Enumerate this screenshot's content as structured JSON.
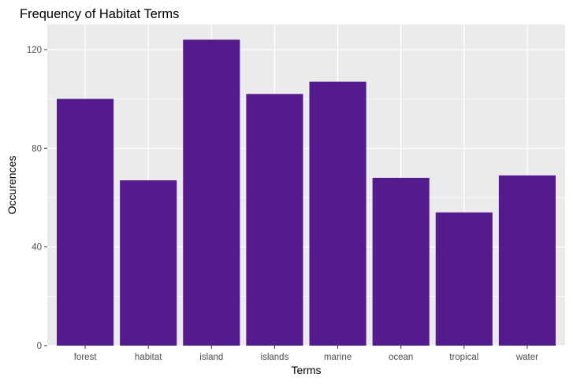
{
  "chart_data": {
    "type": "bar",
    "title": "Frequency of Habitat Terms",
    "xlabel": "Terms",
    "ylabel": "Occurences",
    "categories": [
      "forest",
      "habitat",
      "island",
      "islands",
      "marine",
      "ocean",
      "tropical",
      "water"
    ],
    "values": [
      100,
      67,
      124,
      102,
      107,
      68,
      54,
      69
    ],
    "ylim": [
      0,
      130.2
    ],
    "yticks": [
      0,
      40,
      80,
      120
    ],
    "grid": true,
    "bar_color": "#531b8c",
    "panel_background": "#ebebeb",
    "grid_color": "#ffffff"
  }
}
